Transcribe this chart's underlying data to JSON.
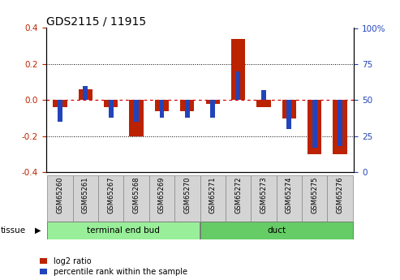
{
  "title": "GDS2115 / 11915",
  "samples": [
    "GSM65260",
    "GSM65261",
    "GSM65267",
    "GSM65268",
    "GSM65269",
    "GSM65270",
    "GSM65271",
    "GSM65272",
    "GSM65273",
    "GSM65274",
    "GSM65275",
    "GSM65276"
  ],
  "log2_ratio": [
    -0.04,
    0.06,
    -0.04,
    -0.2,
    -0.06,
    -0.06,
    -0.02,
    0.34,
    -0.04,
    -0.1,
    -0.3,
    -0.3
  ],
  "pct_rank": [
    35,
    60,
    38,
    35,
    38,
    38,
    38,
    70,
    57,
    30,
    17,
    18
  ],
  "groups": [
    {
      "label": "terminal end bud",
      "start": 0,
      "end": 6,
      "color": "#99ee99"
    },
    {
      "label": "duct",
      "start": 6,
      "end": 12,
      "color": "#66cc66"
    }
  ],
  "ylim_left": [
    -0.4,
    0.4
  ],
  "ylim_right": [
    0,
    100
  ],
  "yticks_left": [
    -0.4,
    -0.2,
    0.0,
    0.2,
    0.4
  ],
  "yticks_right": [
    0,
    25,
    50,
    75,
    100
  ],
  "bar_width": 0.55,
  "pct_bar_width": 0.18,
  "red_color": "#bb2200",
  "blue_color": "#2244bb",
  "bg_color": "#ffffff",
  "plot_bg": "#ffffff",
  "zero_line_color": "#dd0000",
  "tissue_label": "tissue",
  "legend_log2": "log2 ratio",
  "legend_pct": "percentile rank within the sample"
}
